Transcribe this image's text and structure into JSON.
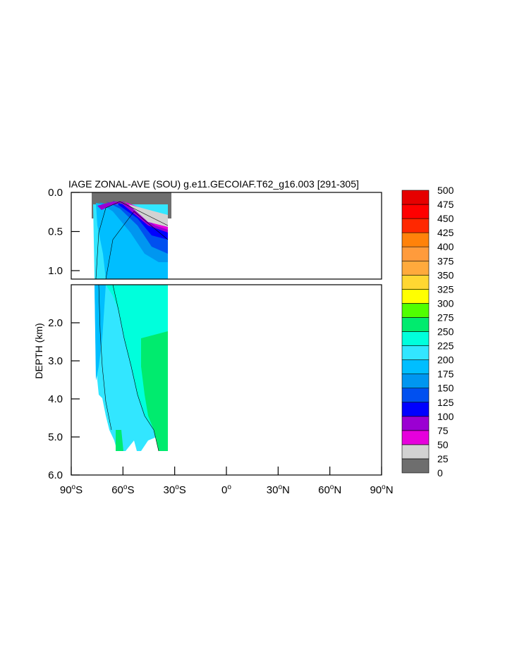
{
  "chart_data": {
    "type": "heatmap",
    "title": "IAGE ZONAL-AVE (SOU) g.e11.GECOIAF.T62_g16.003 [291-305]",
    "ylabel": "DEPTH (km)",
    "xlabel": "",
    "x_ticks": [
      {
        "value": -90,
        "deg": "90",
        "hemi": "S"
      },
      {
        "value": -60,
        "deg": "60",
        "hemi": "S"
      },
      {
        "value": -30,
        "deg": "30",
        "hemi": "S"
      },
      {
        "value": 0,
        "deg": "0",
        "hemi": ""
      },
      {
        "value": 30,
        "deg": "30",
        "hemi": "N"
      },
      {
        "value": 60,
        "deg": "60",
        "hemi": "N"
      },
      {
        "value": 90,
        "deg": "90",
        "hemi": "N"
      }
    ],
    "xlim": [
      -90,
      90
    ],
    "top_panel": {
      "ylim": [
        0.0,
        1.0
      ],
      "y_ticks": [
        "0.0",
        "0.5",
        "1.0"
      ],
      "y_tick_values": [
        0.0,
        0.5,
        1.0
      ]
    },
    "bottom_panel": {
      "ylim": [
        1.0,
        6.0
      ],
      "y_ticks": [
        "2.0",
        "3.0",
        "4.0",
        "5.0",
        "6.0"
      ],
      "y_tick_values": [
        2.0,
        3.0,
        4.0,
        5.0,
        6.0
      ]
    },
    "colorbar": {
      "levels": [
        "0",
        "25",
        "50",
        "75",
        "100",
        "125",
        "150",
        "175",
        "200",
        "225",
        "250",
        "275",
        "300",
        "325",
        "350",
        "375",
        "400",
        "425",
        "450",
        "475",
        "500"
      ],
      "colors": [
        "#6e6e6e",
        "#d2d2d2",
        "#e600dc",
        "#9b00d2",
        "#0000ff",
        "#0050f0",
        "#0096f0",
        "#00beff",
        "#32e6ff",
        "#00ffdc",
        "#00eb6e",
        "#50ff00",
        "#ffff00",
        "#ffd732",
        "#ffaa3c",
        "#ff9b3c",
        "#ff820a",
        "#ff2800",
        "#ff0000",
        "#e60000"
      ]
    },
    "data_extent_lat": [
      -77,
      -34
    ]
  }
}
